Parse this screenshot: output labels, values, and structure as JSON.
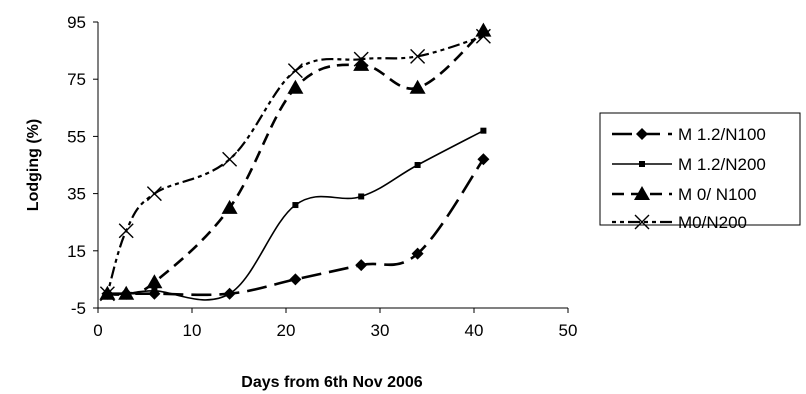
{
  "chart_data": {
    "type": "line",
    "title": "",
    "xlabel": "Days from 6th Nov 2006",
    "ylabel": "Lodging (%)",
    "xlim": [
      0,
      50
    ],
    "ylim": [
      -5,
      95
    ],
    "x_ticks": [
      "0",
      "10",
      "20",
      "30",
      "40",
      "50"
    ],
    "y_ticks": [
      "95",
      "75",
      "55",
      "35",
      "15",
      "-5"
    ],
    "x_tick_values": [
      0,
      10,
      20,
      30,
      40,
      50
    ],
    "y_tick_values": [
      95,
      75,
      55,
      35,
      15,
      -5
    ],
    "grid": false,
    "legend_position": "right",
    "series": [
      {
        "name": "M 1.2/N100",
        "marker": "diamond",
        "dash": "long-dash",
        "x": [
          1,
          3,
          6,
          14,
          21,
          28,
          34,
          41
        ],
        "y": [
          0,
          0,
          0,
          0,
          5,
          10,
          14,
          47
        ]
      },
      {
        "name": "M 1.2/N200",
        "marker": "square",
        "dash": "solid",
        "x": [
          1,
          3,
          6,
          14,
          21,
          28,
          34,
          41
        ],
        "y": [
          0,
          0,
          1,
          0,
          31,
          34,
          45,
          57
        ]
      },
      {
        "name": "M 0/ N100",
        "marker": "triangle",
        "dash": "dash",
        "x": [
          1,
          3,
          6,
          14,
          21,
          28,
          34,
          41
        ],
        "y": [
          0,
          0,
          4,
          30,
          72,
          80,
          72,
          92
        ]
      },
      {
        "name": "M0/N200",
        "marker": "x",
        "dash": "dot-dash",
        "x": [
          1,
          3,
          6,
          14,
          21,
          28,
          34,
          41
        ],
        "y": [
          0,
          22,
          35,
          47,
          78,
          82,
          83,
          90
        ]
      }
    ]
  }
}
